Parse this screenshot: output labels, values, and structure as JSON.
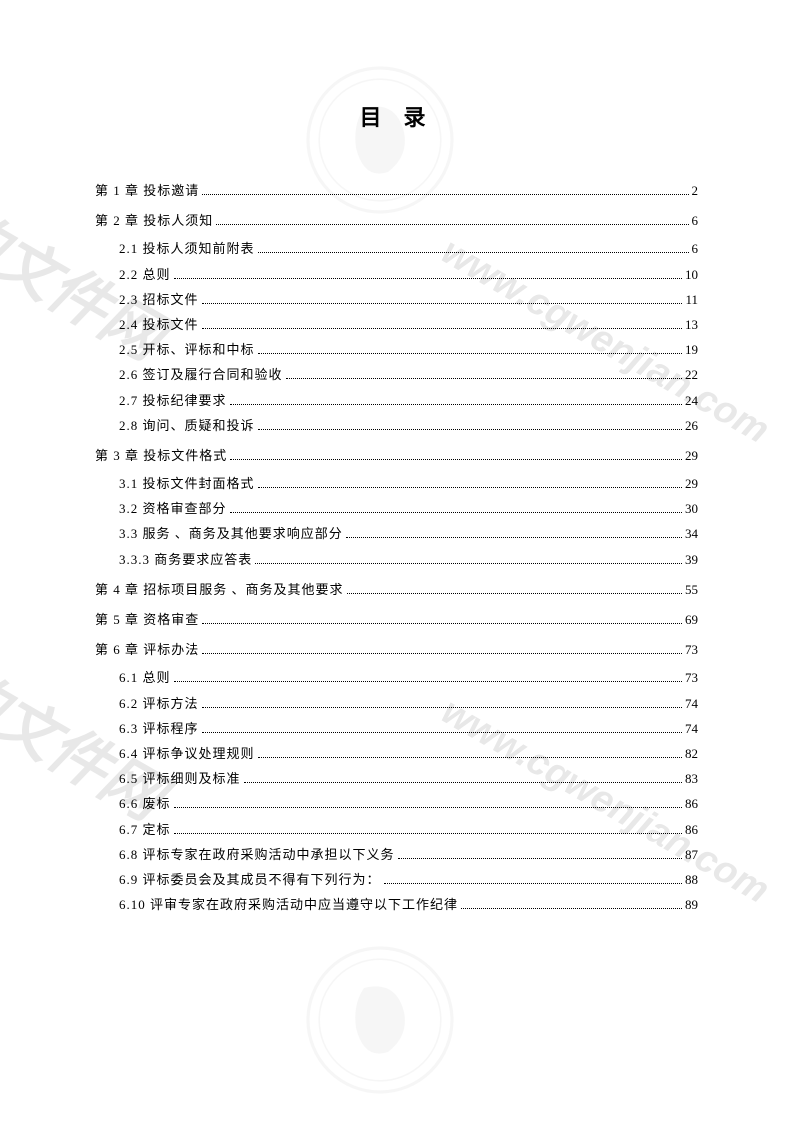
{
  "title": "目 录",
  "watermarks": {
    "text": "www.cgwenjian.com",
    "logo_text": "采购文件网"
  },
  "toc": [
    {
      "type": "chapter",
      "label": "第 1 章  投标邀请",
      "page": "2"
    },
    {
      "type": "chapter",
      "label": "第 2 章  投标人须知",
      "page": "6"
    },
    {
      "type": "sub",
      "label": "2.1  投标人须知前附表",
      "page": "6"
    },
    {
      "type": "sub",
      "label": "2.2  总则",
      "page": "10"
    },
    {
      "type": "sub",
      "label": "2.3  招标文件",
      "page": "11"
    },
    {
      "type": "sub",
      "label": "2.4  投标文件",
      "page": "13"
    },
    {
      "type": "sub",
      "label": "2.5  开标、评标和中标",
      "page": "19"
    },
    {
      "type": "sub",
      "label": "2.6  签订及履行合同和验收",
      "page": "22"
    },
    {
      "type": "sub",
      "label": "2.7  投标纪律要求",
      "page": "24"
    },
    {
      "type": "sub",
      "label": "2.8  询问、质疑和投诉",
      "page": "26"
    },
    {
      "type": "chapter",
      "label": "第 3 章  投标文件格式",
      "page": "29"
    },
    {
      "type": "sub",
      "label": "3.1  投标文件封面格式",
      "page": "29"
    },
    {
      "type": "sub",
      "label": "3.2  资格审查部分",
      "page": "30"
    },
    {
      "type": "sub",
      "label": "3.3  服务 、商务及其他要求响应部分",
      "page": "34"
    },
    {
      "type": "sub",
      "label": "3.3.3  商务要求应答表",
      "page": "39"
    },
    {
      "type": "chapter",
      "label": "第 4 章  招标项目服务 、商务及其他要求",
      "page": "55"
    },
    {
      "type": "chapter",
      "label": "第 5 章  资格审查",
      "page": "69"
    },
    {
      "type": "chapter",
      "label": "第 6 章  评标办法",
      "page": "73"
    },
    {
      "type": "sub",
      "label": "6.1  总则",
      "page": "73"
    },
    {
      "type": "sub",
      "label": "6.2  评标方法",
      "page": "74"
    },
    {
      "type": "sub",
      "label": "6.3  评标程序",
      "page": "74"
    },
    {
      "type": "sub",
      "label": "6.4  评标争议处理规则",
      "page": "82"
    },
    {
      "type": "sub",
      "label": "6.5  评标细则及标准",
      "page": "83"
    },
    {
      "type": "sub",
      "label": "6.6  废标",
      "page": "86"
    },
    {
      "type": "sub",
      "label": "6.7  定标",
      "page": "86"
    },
    {
      "type": "sub",
      "label": "6.8  评标专家在政府采购活动中承担以下义务",
      "page": "87"
    },
    {
      "type": "sub",
      "label": "6.9  评标委员会及其成员不得有下列行为：",
      "page": "88"
    },
    {
      "type": "sub",
      "label": "6.10  评审专家在政府采购活动中应当遵守以下工作纪律",
      "page": "89"
    }
  ]
}
